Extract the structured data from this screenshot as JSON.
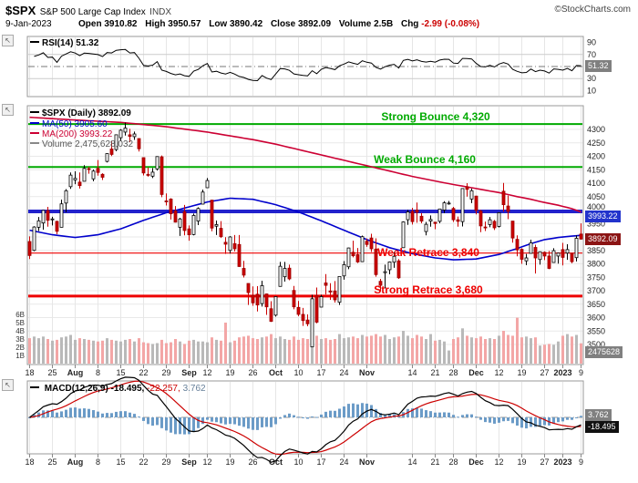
{
  "header": {
    "symbol": "$SPX",
    "name": "S&P 500 Large Cap Index",
    "exchange": "INDX",
    "date": "9-Jan-2023",
    "credit": "©StockCharts.com",
    "quote": {
      "open": {
        "label": "Open",
        "value": "3910.82"
      },
      "high": {
        "label": "High",
        "value": "3950.57"
      },
      "low": {
        "label": "Low",
        "value": "3890.42"
      },
      "close": {
        "label": "Close",
        "value": "3892.09"
      },
      "volume": {
        "label": "Volume",
        "value": "2.5B"
      },
      "chg": {
        "label": "Chg",
        "value": "-2.99 (-0.08%)"
      }
    }
  },
  "rsi_panel": {
    "legend": "RSI(14) 51.32",
    "last_box": "51.32"
  },
  "main_panel": {
    "legend_spx": "$SPX (Daily) 3892.09",
    "legend_ma50": "MA(50) 3905.60",
    "legend_ma200": "MA(200) 3993.22",
    "legend_volume": "Volume 2,475,628,032",
    "ma200_box": "3993.22",
    "close_box": "3892.09",
    "volume_box": "2475628"
  },
  "macd_panel": {
    "legend_name": "MACD(12,26,9)",
    "macd_value": "-18.495,",
    "signal_value": "-22.257,",
    "hist_value": "3.762",
    "hist_box": "3.762",
    "macd_box": "-18.495"
  },
  "x_ticks": [
    {
      "i": 0,
      "t": "18"
    },
    {
      "i": 5,
      "t": "25"
    },
    {
      "i": 10,
      "t": "Aug",
      "b": 1
    },
    {
      "i": 15,
      "t": "8"
    },
    {
      "i": 20,
      "t": "15"
    },
    {
      "i": 25,
      "t": "22"
    },
    {
      "i": 30,
      "t": "29"
    },
    {
      "i": 35,
      "t": "Sep",
      "b": 1
    },
    {
      "i": 39,
      "t": "12"
    },
    {
      "i": 44,
      "t": "19"
    },
    {
      "i": 49,
      "t": "26"
    },
    {
      "i": 54,
      "t": "Oct",
      "b": 1
    },
    {
      "i": 59,
      "t": "10"
    },
    {
      "i": 64,
      "t": "17"
    },
    {
      "i": 69,
      "t": "24"
    },
    {
      "i": 74,
      "t": "Nov",
      "b": 1
    },
    {
      "i": 84,
      "t": "14"
    },
    {
      "i": 89,
      "t": "21"
    },
    {
      "i": 93,
      "t": "28"
    },
    {
      "i": 98,
      "t": "Dec",
      "b": 1
    },
    {
      "i": 103,
      "t": "12"
    },
    {
      "i": 108,
      "t": "19"
    },
    {
      "i": 113,
      "t": "27"
    },
    {
      "i": 117,
      "t": "2023",
      "b": 1
    },
    {
      "i": 121,
      "t": "9"
    }
  ],
  "chart_data": {
    "type": "candlestick",
    "title": "$SPX S&P 500 Large Cap Index (Daily)",
    "price_axis": {
      "min": 3500,
      "max": 4300,
      "step": 50
    },
    "price_axis_labels": [
      4300,
      4250,
      4200,
      4150,
      4100,
      4050,
      4000,
      3950,
      3850,
      3800,
      3750,
      3700,
      3650,
      3600,
      3550,
      3500
    ],
    "volume_axis_labels": [
      "6B",
      "5B",
      "4B",
      "3B",
      "2B",
      "1B"
    ],
    "rsi_axis_labels": [
      90,
      70,
      30,
      10
    ],
    "rsi": {
      "period": 14,
      "last": 51.32,
      "levels": [
        70,
        50,
        30
      ]
    },
    "macd": {
      "params": [
        12,
        26,
        9
      ],
      "last_macd": -18.495,
      "last_signal": -22.257,
      "last_hist": 3.762
    },
    "annotations": [
      {
        "name": "strong-bounce",
        "text": "Strong Bounce 4,320",
        "value": 4320,
        "color": "#00aa00",
        "width": 2
      },
      {
        "name": "weak-bounce",
        "text": "Weak Bounce 4,160",
        "value": 4160,
        "color": "#00aa00",
        "width": 2
      },
      {
        "name": "blue-resistance",
        "text": "",
        "value": 3995,
        "color": "#2222cc",
        "width": 4
      },
      {
        "name": "weak-retrace",
        "text": "Weak Retrace 3,840",
        "value": 3840,
        "color": "#ee0000",
        "width": 1.2
      },
      {
        "name": "strong-retrace",
        "text": "Strong Retrace 3,680",
        "value": 3680,
        "color": "#ee0000",
        "width": 3
      }
    ],
    "overlays": {
      "ma50_last": 3905.6,
      "ma200_last": 3993.22,
      "ma50_keypoints": [
        [
          0,
          3925
        ],
        [
          5,
          3908
        ],
        [
          10,
          3898
        ],
        [
          15,
          3908
        ],
        [
          20,
          3930
        ],
        [
          25,
          3962
        ],
        [
          30,
          3990
        ],
        [
          35,
          4012
        ],
        [
          39,
          4030
        ],
        [
          44,
          4044
        ],
        [
          49,
          4040
        ],
        [
          54,
          4020
        ],
        [
          59,
          3993
        ],
        [
          64,
          3960
        ],
        [
          69,
          3925
        ],
        [
          74,
          3890
        ],
        [
          79,
          3860
        ],
        [
          84,
          3838
        ],
        [
          89,
          3822
        ],
        [
          93,
          3815
        ],
        [
          98,
          3818
        ],
        [
          103,
          3835
        ],
        [
          107,
          3857
        ],
        [
          110,
          3875
        ],
        [
          113,
          3890
        ],
        [
          116,
          3898
        ],
        [
          119,
          3903
        ],
        [
          121,
          3906
        ]
      ],
      "ma200_keypoints": [
        [
          0,
          4345
        ],
        [
          10,
          4335
        ],
        [
          20,
          4326
        ],
        [
          30,
          4310
        ],
        [
          39,
          4290
        ],
        [
          49,
          4262
        ],
        [
          54,
          4245
        ],
        [
          59,
          4225
        ],
        [
          64,
          4205
        ],
        [
          69,
          4185
        ],
        [
          74,
          4165
        ],
        [
          79,
          4145
        ],
        [
          84,
          4125
        ],
        [
          89,
          4108
        ],
        [
          93,
          4095
        ],
        [
          98,
          4080
        ],
        [
          103,
          4065
        ],
        [
          107,
          4050
        ],
        [
          110,
          4040
        ],
        [
          113,
          4028
        ],
        [
          116,
          4018
        ],
        [
          119,
          4005
        ],
        [
          121,
          3993
        ]
      ]
    },
    "ohlcv_format": [
      "date",
      "open",
      "high",
      "low",
      "close",
      "volume_billions"
    ],
    "candles": [
      [
        "Jul 18",
        3883,
        3902,
        3818,
        3831,
        3.1
      ],
      [
        "Jul 19",
        3850,
        3940,
        3847,
        3937,
        3.3
      ],
      [
        "Jul 20",
        3936,
        3974,
        3922,
        3960,
        3.1
      ],
      [
        "Jul 21",
        3952,
        4000,
        3927,
        3999,
        3.3
      ],
      [
        "Jul 22",
        3998,
        4012,
        3938,
        3962,
        3.0
      ],
      [
        "Jul 25",
        3965,
        3975,
        3943,
        3967,
        2.8
      ],
      [
        "Jul 26",
        3958,
        3960,
        3910,
        3921,
        2.9
      ],
      [
        "Jul 27",
        3936,
        4039,
        3936,
        4023,
        3.2
      ],
      [
        "Jul 28",
        4026,
        4078,
        3992,
        4072,
        3.3
      ],
      [
        "Jul 29",
        4087,
        4140,
        4079,
        4130,
        3.5
      ],
      [
        "Aug 1",
        4112,
        4144,
        4096,
        4118,
        2.9
      ],
      [
        "Aug 2",
        4104,
        4140,
        4080,
        4091,
        3.1
      ],
      [
        "Aug 3",
        4107,
        4167,
        4107,
        4155,
        3.0
      ],
      [
        "Aug 4",
        4154,
        4161,
        4135,
        4152,
        2.9
      ],
      [
        "Aug 5",
        4116,
        4151,
        4107,
        4145,
        2.8
      ],
      [
        "Aug 8",
        4155,
        4186,
        4128,
        4140,
        2.7
      ],
      [
        "Aug 9",
        4133,
        4137,
        4112,
        4122,
        2.8
      ],
      [
        "Aug 10",
        4181,
        4211,
        4177,
        4210,
        3.1
      ],
      [
        "Aug 11",
        4227,
        4257,
        4201,
        4207,
        2.9
      ],
      [
        "Aug 12",
        4225,
        4280,
        4219,
        4280,
        2.8
      ],
      [
        "Aug 15",
        4269,
        4301,
        4256,
        4297,
        2.7
      ],
      [
        "Aug 16",
        4290,
        4325,
        4277,
        4305,
        2.9
      ],
      [
        "Aug 17",
        4280,
        4302,
        4253,
        4274,
        3.0
      ],
      [
        "Aug 18",
        4273,
        4292,
        4261,
        4283,
        2.7
      ],
      [
        "Aug 19",
        4266,
        4266,
        4218,
        4228,
        3.1
      ],
      [
        "Aug 22",
        4195,
        4195,
        4129,
        4138,
        2.6
      ],
      [
        "Aug 23",
        4133,
        4159,
        4124,
        4129,
        2.5
      ],
      [
        "Aug 24",
        4126,
        4156,
        4119,
        4141,
        2.4
      ],
      [
        "Aug 25",
        4153,
        4200,
        4147,
        4199,
        2.5
      ],
      [
        "Aug 26",
        4198,
        4203,
        4048,
        4058,
        2.9
      ],
      [
        "Aug 29",
        4034,
        4062,
        4017,
        4031,
        2.5
      ],
      [
        "Aug 30",
        4041,
        4044,
        3965,
        3986,
        2.6
      ],
      [
        "Aug 31",
        3997,
        4015,
        3954,
        3955,
        3.0
      ],
      [
        "Sep 1",
        3936,
        3971,
        3904,
        3967,
        2.7
      ],
      [
        "Sep 2",
        3994,
        4019,
        3906,
        3924,
        2.4
      ],
      [
        "Sep 6",
        3930,
        3943,
        3886,
        3908,
        2.8
      ],
      [
        "Sep 7",
        3909,
        3987,
        3906,
        3980,
        2.9
      ],
      [
        "Sep 8",
        3959,
        4010,
        3944,
        4006,
        2.7
      ],
      [
        "Sep 9",
        4022,
        4076,
        4022,
        4067,
        2.7
      ],
      [
        "Sep 12",
        4083,
        4119,
        4083,
        4110,
        2.6
      ],
      [
        "Sep 13",
        4037,
        4037,
        3921,
        3933,
        3.2
      ],
      [
        "Sep 14",
        3940,
        3961,
        3907,
        3946,
        2.9
      ],
      [
        "Sep 15",
        3932,
        3959,
        3896,
        3901,
        2.8
      ],
      [
        "Sep 16",
        3880,
        3899,
        3837,
        3873,
        5.0
      ],
      [
        "Sep 19",
        3850,
        3903,
        3838,
        3900,
        2.6
      ],
      [
        "Sep 20",
        3875,
        3907,
        3846,
        3856,
        2.8
      ],
      [
        "Sep 21",
        3872,
        3907,
        3789,
        3790,
        3.2
      ],
      [
        "Sep 22",
        3783,
        3811,
        3749,
        3758,
        3.3
      ],
      [
        "Sep 23",
        3727,
        3727,
        3647,
        3693,
        3.4
      ],
      [
        "Sep 26",
        3683,
        3716,
        3644,
        3655,
        3.1
      ],
      [
        "Sep 27",
        3687,
        3717,
        3623,
        3647,
        3.0
      ],
      [
        "Sep 28",
        3652,
        3737,
        3641,
        3719,
        3.2
      ],
      [
        "Sep 29",
        3688,
        3689,
        3610,
        3640,
        3.3
      ],
      [
        "Sep 30",
        3633,
        3661,
        3584,
        3586,
        3.6
      ],
      [
        "Oct 3",
        3609,
        3679,
        3604,
        3678,
        3.1
      ],
      [
        "Oct 4",
        3716,
        3807,
        3716,
        3791,
        3.3
      ],
      [
        "Oct 5",
        3752,
        3807,
        3734,
        3783,
        3.0
      ],
      [
        "Oct 6",
        3784,
        3797,
        3739,
        3744,
        2.9
      ],
      [
        "Oct 7",
        3701,
        3718,
        3631,
        3640,
        3.3
      ],
      [
        "Oct 10",
        3638,
        3662,
        3605,
        3612,
        2.9
      ],
      [
        "Oct 11",
        3612,
        3636,
        3569,
        3589,
        3.1
      ],
      [
        "Oct 12",
        3591,
        3612,
        3568,
        3577,
        3.0
      ],
      [
        "Oct 13",
        3491,
        3685,
        3491,
        3670,
        4.2
      ],
      [
        "Oct 14",
        3683,
        3712,
        3579,
        3583,
        3.4
      ],
      [
        "Oct 17",
        3639,
        3685,
        3639,
        3678,
        3.0
      ],
      [
        "Oct 18",
        3729,
        3762,
        3686,
        3720,
        3.1
      ],
      [
        "Oct 19",
        3699,
        3728,
        3666,
        3695,
        2.9
      ],
      [
        "Oct 20",
        3699,
        3736,
        3656,
        3666,
        3.0
      ],
      [
        "Oct 21",
        3657,
        3753,
        3647,
        3753,
        3.6
      ],
      [
        "Oct 24",
        3755,
        3810,
        3741,
        3797,
        3.1
      ],
      [
        "Oct 25",
        3789,
        3860,
        3780,
        3859,
        3.2
      ],
      [
        "Oct 26",
        3843,
        3886,
        3824,
        3830,
        3.3
      ],
      [
        "Oct 27",
        3834,
        3859,
        3803,
        3807,
        3.1
      ],
      [
        "Oct 28",
        3808,
        3905,
        3808,
        3901,
        3.5
      ],
      [
        "Oct 31",
        3884,
        3894,
        3863,
        3872,
        3.3
      ],
      [
        "Nov 1",
        3896,
        3912,
        3844,
        3856,
        3.4
      ],
      [
        "Nov 2",
        3855,
        3895,
        3752,
        3760,
        3.6
      ],
      [
        "Nov 3",
        3735,
        3744,
        3698,
        3720,
        3.3
      ],
      [
        "Nov 4",
        3767,
        3797,
        3709,
        3771,
        3.5
      ],
      [
        "Nov 7",
        3778,
        3809,
        3761,
        3807,
        3.0
      ],
      [
        "Nov 8",
        3806,
        3844,
        3785,
        3828,
        3.2
      ],
      [
        "Nov 9",
        3811,
        3818,
        3744,
        3748,
        3.3
      ],
      [
        "Nov 10",
        3860,
        3958,
        3860,
        3956,
        4.0
      ],
      [
        "Nov 11",
        3964,
        4001,
        3945,
        3993,
        3.4
      ],
      [
        "Nov 14",
        3995,
        4008,
        3946,
        3957,
        3.1
      ],
      [
        "Nov 15",
        4000,
        4028,
        3953,
        3992,
        3.5
      ],
      [
        "Nov 16",
        3977,
        3989,
        3951,
        3959,
        3.3
      ],
      [
        "Nov 17",
        3920,
        3956,
        3906,
        3947,
        3.0
      ],
      [
        "Nov 18",
        3959,
        3980,
        3938,
        3965,
        3.6
      ],
      [
        "Nov 21",
        3955,
        3955,
        3929,
        3950,
        2.8
      ],
      [
        "Nov 22",
        3958,
        4005,
        3951,
        4004,
        2.9
      ],
      [
        "Nov 23",
        4000,
        4033,
        3988,
        4027,
        2.7
      ],
      [
        "Nov 25",
        4023,
        4034,
        4020,
        4026,
        1.6
      ],
      [
        "Nov 28",
        4006,
        4012,
        3956,
        3964,
        3.0
      ],
      [
        "Nov 29",
        3964,
        3976,
        3938,
        3958,
        3.2
      ],
      [
        "Nov 30",
        3957,
        4080,
        3939,
        4080,
        4.3
      ],
      [
        "Dec 1",
        4087,
        4100,
        4050,
        4077,
        3.4
      ],
      [
        "Dec 2",
        4041,
        4080,
        4026,
        4072,
        3.2
      ],
      [
        "Dec 5",
        4052,
        4053,
        3984,
        3999,
        3.1
      ],
      [
        "Dec 6",
        3996,
        4001,
        3918,
        3941,
        3.3
      ],
      [
        "Dec 7",
        3937,
        3957,
        3922,
        3934,
        3.0
      ],
      [
        "Dec 8",
        3946,
        3974,
        3936,
        3964,
        3.1
      ],
      [
        "Dec 9",
        3958,
        3963,
        3926,
        3934,
        3.0
      ],
      [
        "Dec 12",
        3939,
        3991,
        3935,
        3990,
        3.4
      ],
      [
        "Dec 13",
        4070,
        4101,
        3994,
        4020,
        4.0
      ],
      [
        "Dec 14",
        4015,
        4054,
        3966,
        3995,
        3.5
      ],
      [
        "Dec 15",
        3959,
        3959,
        3879,
        3896,
        3.4
      ],
      [
        "Dec 16",
        3891,
        3906,
        3828,
        3852,
        5.6
      ],
      [
        "Dec 19",
        3854,
        3858,
        3800,
        3817,
        3.2
      ],
      [
        "Dec 20",
        3811,
        3837,
        3795,
        3822,
        3.3
      ],
      [
        "Dec 21",
        3839,
        3890,
        3839,
        3878,
        3.1
      ],
      [
        "Dec 22",
        3861,
        3871,
        3764,
        3822,
        3.2
      ],
      [
        "Dec 23",
        3816,
        3845,
        3797,
        3845,
        2.2
      ],
      [
        "Dec 27",
        3843,
        3846,
        3814,
        3829,
        2.3
      ],
      [
        "Dec 28",
        3829,
        3848,
        3780,
        3783,
        2.4
      ],
      [
        "Dec 29",
        3805,
        3858,
        3805,
        3849,
        2.3
      ],
      [
        "Dec 30",
        3829,
        3840,
        3801,
        3840,
        2.7
      ],
      [
        "Jan 3",
        3853,
        3878,
        3794,
        3824,
        3.4
      ],
      [
        "Jan 4",
        3840,
        3873,
        3815,
        3853,
        3.6
      ],
      [
        "Jan 5",
        3839,
        3839,
        3802,
        3808,
        3.3
      ],
      [
        "Jan 6",
        3823,
        3906,
        3809,
        3895,
        3.5
      ],
      [
        "Jan 9",
        3910.82,
        3950.57,
        3890.42,
        3892.09,
        2.4756
      ]
    ]
  }
}
